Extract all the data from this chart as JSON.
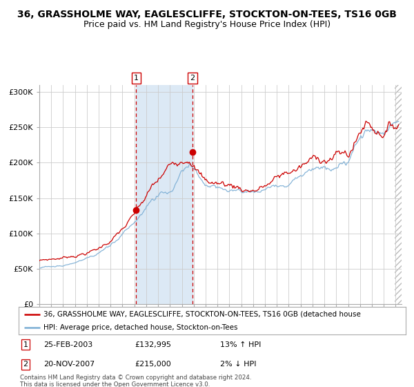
{
  "title": "36, GRASSHOLME WAY, EAGLESCLIFFE, STOCKTON-ON-TEES, TS16 0GB",
  "subtitle": "Price paid vs. HM Land Registry's House Price Index (HPI)",
  "ylabel_ticks": [
    "£0",
    "£50K",
    "£100K",
    "£150K",
    "£200K",
    "£250K",
    "£300K"
  ],
  "ytick_vals": [
    0,
    50000,
    100000,
    150000,
    200000,
    250000,
    300000
  ],
  "ylim": [
    0,
    310000
  ],
  "xlim_start": 1995.0,
  "xlim_end": 2025.5,
  "marker1_x": 2003.15,
  "marker1_y": 132995,
  "marker2_x": 2007.9,
  "marker2_y": 215000,
  "vline1_x": 2003.15,
  "vline2_x": 2007.9,
  "shade_start": 2003.15,
  "shade_end": 2007.9,
  "hatch_start": 2024.92,
  "hatch_end": 2025.5,
  "legend_red_label": "36, GRASSHOLME WAY, EAGLESCLIFFE, STOCKTON-ON-TEES, TS16 0GB (detached house",
  "legend_blue_label": "HPI: Average price, detached house, Stockton-on-Tees",
  "table_row1": [
    "1",
    "25-FEB-2003",
    "£132,995",
    "13% ↑ HPI"
  ],
  "table_row2": [
    "2",
    "20-NOV-2007",
    "£215,000",
    "2% ↓ HPI"
  ],
  "copyright_text": "Contains HM Land Registry data © Crown copyright and database right 2024.\nThis data is licensed under the Open Government Licence v3.0.",
  "red_color": "#cc0000",
  "blue_color": "#7aadd4",
  "shade_color": "#dce9f5",
  "grid_color": "#cccccc",
  "bg_color": "#ffffff",
  "title_fontsize": 10,
  "subtitle_fontsize": 9
}
